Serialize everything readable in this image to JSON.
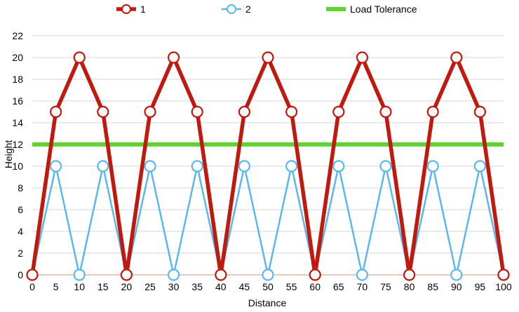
{
  "chart_data": {
    "type": "line",
    "xlabel": "Distance",
    "ylabel": "Height",
    "xlim": [
      0,
      100
    ],
    "ylim": [
      0,
      22
    ],
    "xticks": [
      0,
      5,
      10,
      15,
      20,
      25,
      30,
      35,
      40,
      45,
      50,
      55,
      60,
      65,
      70,
      75,
      80,
      85,
      90,
      95,
      100
    ],
    "yticks": [
      0,
      2,
      4,
      6,
      8,
      10,
      12,
      14,
      16,
      18,
      20,
      22
    ],
    "grid": "horizontal",
    "legend_position": "top",
    "series": [
      {
        "name": "1",
        "color": "#c0190e",
        "marker": "circle",
        "x": [
          0,
          5,
          10,
          15,
          20,
          25,
          30,
          35,
          40,
          45,
          50,
          55,
          60,
          65,
          70,
          75,
          80,
          85,
          90,
          95,
          100
        ],
        "y": [
          0,
          15,
          20,
          15,
          0,
          15,
          20,
          15,
          0,
          15,
          20,
          15,
          0,
          15,
          20,
          15,
          0,
          15,
          20,
          15,
          0
        ]
      },
      {
        "name": "2",
        "color": "#5bb8ee",
        "marker": "circle",
        "x": [
          0,
          5,
          10,
          15,
          20,
          25,
          30,
          35,
          40,
          45,
          50,
          55,
          60,
          65,
          70,
          75,
          80,
          85,
          90,
          95,
          100
        ],
        "y": [
          0,
          10,
          0,
          10,
          0,
          10,
          0,
          10,
          0,
          10,
          0,
          10,
          0,
          10,
          0,
          10,
          0,
          10,
          0,
          10,
          0
        ]
      },
      {
        "name": "Load Tolerance",
        "color": "#5fd32e",
        "marker": "none",
        "x": [
          0,
          100
        ],
        "y": [
          12,
          12
        ]
      }
    ]
  }
}
